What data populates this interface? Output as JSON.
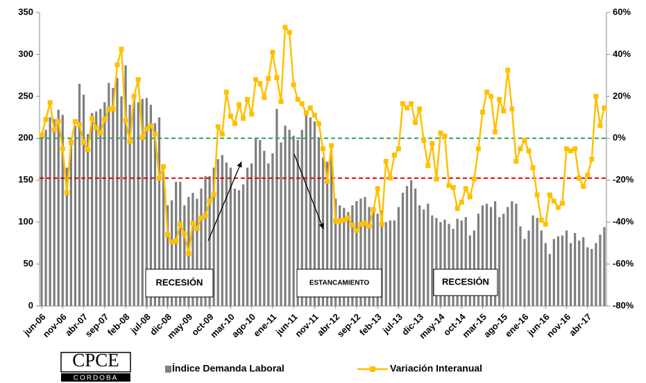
{
  "chart_data": {
    "type": "bar_line",
    "categories": [
      "jun-06",
      null,
      null,
      null,
      null,
      "nov-06",
      null,
      null,
      null,
      null,
      "abr-07",
      null,
      null,
      null,
      null,
      "sep-07",
      null,
      null,
      null,
      null,
      "feb-08",
      null,
      null,
      null,
      null,
      "jul-08",
      null,
      null,
      null,
      null,
      "dic-08",
      null,
      null,
      null,
      null,
      "may-09",
      null,
      null,
      null,
      null,
      "oct-09",
      null,
      null,
      null,
      null,
      "mar-10",
      null,
      null,
      null,
      null,
      "ago-10",
      null,
      null,
      null,
      null,
      "ene-11",
      null,
      null,
      null,
      null,
      "jun-11",
      null,
      null,
      null,
      null,
      "nov-11",
      null,
      null,
      null,
      null,
      "abr-12",
      null,
      null,
      null,
      null,
      "sep-12",
      null,
      null,
      null,
      null,
      "feb-13",
      null,
      null,
      null,
      null,
      "jul-13",
      null,
      null,
      null,
      null,
      "dic-13",
      null,
      null,
      null,
      null,
      "may-14",
      null,
      null,
      null,
      null,
      "oct-14",
      null,
      null,
      null,
      null,
      "mar-15",
      null,
      null,
      null,
      null,
      "ago-15",
      null,
      null,
      null,
      null,
      "ene-16",
      null,
      null,
      null,
      null,
      "jun-16",
      null,
      null,
      null,
      null,
      "nov-16",
      null,
      null,
      null,
      null,
      "abr-17",
      null,
      null,
      null,
      null
    ],
    "series": [
      {
        "name": "Índice Demanda Laboral",
        "type": "bar",
        "color": "#7f7f7f",
        "values": [
          205,
          210,
          225,
          223,
          234,
          228,
          165,
          200,
          215,
          265,
          252,
          205,
          230,
          232,
          235,
          243,
          266,
          260,
          272,
          250,
          287,
          240,
          248,
          243,
          247,
          248,
          240,
          218,
          225,
          160,
          120,
          126,
          148,
          148,
          120,
          130,
          135,
          128,
          140,
          155,
          155,
          165,
          175,
          180,
          171,
          165,
          140,
          138,
          145,
          165,
          170,
          200,
          198,
          185,
          170,
          182,
          235,
          195,
          215,
          210,
          203,
          198,
          210,
          230,
          225,
          220,
          200,
          177,
          172,
          185,
          128,
          120,
          117,
          112,
          120,
          125,
          128,
          130,
          118,
          115,
          110,
          114,
          100,
          102,
          102,
          118,
          135,
          143,
          150,
          140,
          120,
          115,
          122,
          108,
          105,
          100,
          103,
          98,
          92,
          104,
          102,
          106,
          84,
          90,
          110,
          120,
          122,
          118,
          125,
          106,
          110,
          118,
          125,
          122,
          95,
          80,
          90,
          108,
          105,
          90,
          75,
          62,
          80,
          83,
          84,
          90,
          75,
          87,
          78,
          82,
          70,
          68,
          75,
          85,
          94
        ]
      },
      {
        "name": "Variación Interanual",
        "type": "line",
        "axis": "y2",
        "color": "#ffc000",
        "values": [
          1.5,
          9,
          17,
          4,
          8,
          -5,
          -26,
          -2,
          8,
          6.5,
          -2,
          -5.5,
          9.5,
          5,
          2.5,
          9,
          14,
          14,
          35,
          42.5,
          8.5,
          -1.5,
          20,
          28,
          0.5,
          4.5,
          6,
          2,
          -19,
          -13.5,
          -46,
          -49.5,
          -49,
          -41,
          -45.5,
          -55,
          -40.5,
          -43,
          -38,
          -37,
          -30,
          -27,
          5.5,
          2,
          22,
          10.5,
          7,
          16,
          9.5,
          18.5,
          11.5,
          28,
          26,
          19.5,
          28.5,
          41,
          29,
          17.5,
          53,
          50.5,
          25.5,
          18.5,
          16.5,
          12,
          14.5,
          11,
          7,
          -5,
          -20.5,
          -3.5,
          -39.5,
          -39.5,
          -39,
          -38,
          -41.5,
          -44,
          -41,
          -40.5,
          -42,
          -34,
          -24,
          -41,
          -11,
          -19,
          -8,
          -5,
          16.5,
          14.5,
          16.5,
          7.5,
          14,
          -1,
          -13,
          -2.5,
          -19.5,
          2.5,
          1,
          -22.5,
          -23.5,
          -33.5,
          -30.5,
          -24,
          -28,
          -19.5,
          -5,
          12.5,
          22,
          20,
          3,
          18.5,
          13,
          32.5,
          14,
          -11,
          -5,
          -1,
          -6,
          -14,
          -27,
          -39,
          -41,
          -27,
          -30,
          -33,
          -31,
          -5,
          -6,
          -5,
          -19,
          -23,
          -17.5,
          -10,
          20,
          6,
          14.5
        ]
      }
    ],
    "ylim": [
      0,
      350
    ],
    "yticks": [
      0,
      50,
      100,
      150,
      200,
      250,
      300,
      350
    ],
    "y2lim": [
      -80,
      60
    ],
    "y2ticks": [
      {
        "value": -80,
        "label": "-80%"
      },
      {
        "value": -60,
        "label": "-60%"
      },
      {
        "value": -40,
        "label": "-40%"
      },
      {
        "value": -20,
        "label": "-20%"
      },
      {
        "value": 0,
        "label": "0%"
      },
      {
        "value": 20,
        "label": "20%"
      },
      {
        "value": 40,
        "label": "40%"
      },
      {
        "value": 60,
        "label": "60%"
      }
    ],
    "reference_lines": [
      {
        "value": 0,
        "axis": "y2",
        "color": "#3a9a5b"
      },
      {
        "value": -19,
        "axis": "y2",
        "color": "#e00000"
      }
    ],
    "annotations": [
      "RECESIÓN",
      "ESTANCAMIENTO",
      "RECESIÓN"
    ],
    "legend_position": "bottom"
  },
  "logo": {
    "title": "CPCE",
    "subtitle": "CORDOBA"
  }
}
